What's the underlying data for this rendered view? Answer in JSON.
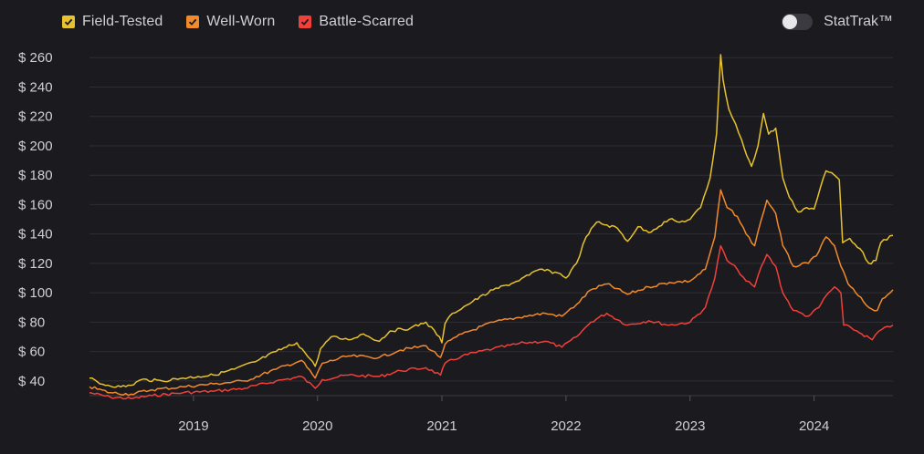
{
  "legend": {
    "items": [
      {
        "label": "Field-Tested",
        "color": "#e6c22e",
        "checked": true
      },
      {
        "label": "Well-Worn",
        "color": "#f28a2c",
        "checked": true
      },
      {
        "label": "Battle-Scarred",
        "color": "#f0403a",
        "checked": true
      }
    ]
  },
  "toggle": {
    "label": "StatTrak™",
    "on": false
  },
  "chart_data": {
    "type": "line",
    "ylim": [
      30,
      262
    ],
    "y_ticks": [
      40,
      60,
      80,
      100,
      120,
      140,
      160,
      180,
      200,
      220,
      240,
      260
    ],
    "y_tick_labels": [
      "$ 40",
      "$ 60",
      "$ 80",
      "$ 100",
      "$ 120",
      "$ 140",
      "$ 160",
      "$ 180",
      "$ 200",
      "$ 220",
      "$ 240",
      "$ 260"
    ],
    "x_range": [
      "2018-03-01",
      "2024-08-20"
    ],
    "x_ticks": [
      "2019-01-01",
      "2020-01-01",
      "2021-01-01",
      "2022-01-01",
      "2023-01-01",
      "2024-01-01"
    ],
    "x_tick_labels": [
      "2019",
      "2020",
      "2021",
      "2022",
      "2023",
      "2024"
    ],
    "grid": true,
    "series": [
      {
        "name": "Field-Tested",
        "color": "#e6c22e",
        "points": [
          [
            "2018-03-01",
            42
          ],
          [
            "2018-04-01",
            38
          ],
          [
            "2018-06-01",
            36
          ],
          [
            "2018-07-01",
            37
          ],
          [
            "2018-08-01",
            41
          ],
          [
            "2018-10-01",
            40
          ],
          [
            "2018-12-01",
            42
          ],
          [
            "2019-01-15",
            43
          ],
          [
            "2019-03-01",
            44
          ],
          [
            "2019-05-01",
            48
          ],
          [
            "2019-07-01",
            53
          ],
          [
            "2019-09-01",
            60
          ],
          [
            "2019-11-01",
            66
          ],
          [
            "2019-12-10",
            55
          ],
          [
            "2019-12-25",
            50
          ],
          [
            "2020-01-10",
            62
          ],
          [
            "2020-02-10",
            70
          ],
          [
            "2020-04-01",
            68
          ],
          [
            "2020-05-15",
            72
          ],
          [
            "2020-07-01",
            67
          ],
          [
            "2020-08-01",
            74
          ],
          [
            "2020-10-01",
            76
          ],
          [
            "2020-11-15",
            80
          ],
          [
            "2020-12-25",
            70
          ],
          [
            "2021-01-01",
            66
          ],
          [
            "2021-01-10",
            79
          ],
          [
            "2021-02-01",
            86
          ],
          [
            "2021-04-01",
            94
          ],
          [
            "2021-06-01",
            102
          ],
          [
            "2021-08-01",
            107
          ],
          [
            "2021-09-15",
            112
          ],
          [
            "2021-10-15",
            116
          ],
          [
            "2021-12-15",
            113
          ],
          [
            "2022-01-01",
            110
          ],
          [
            "2022-02-01",
            120
          ],
          [
            "2022-03-01",
            138
          ],
          [
            "2022-04-01",
            148
          ],
          [
            "2022-06-01",
            144
          ],
          [
            "2022-07-01",
            135
          ],
          [
            "2022-08-01",
            145
          ],
          [
            "2022-09-01",
            141
          ],
          [
            "2022-11-01",
            150
          ],
          [
            "2022-12-01",
            148
          ],
          [
            "2023-01-01",
            150
          ],
          [
            "2023-02-01",
            158
          ],
          [
            "2023-03-01",
            178
          ],
          [
            "2023-03-20",
            208
          ],
          [
            "2023-04-01",
            262
          ],
          [
            "2023-04-08",
            245
          ],
          [
            "2023-04-25",
            225
          ],
          [
            "2023-05-15",
            215
          ],
          [
            "2023-06-10",
            198
          ],
          [
            "2023-07-01",
            186
          ],
          [
            "2023-07-20",
            200
          ],
          [
            "2023-08-05",
            222
          ],
          [
            "2023-08-20",
            208
          ],
          [
            "2023-09-10",
            212
          ],
          [
            "2023-10-01",
            178
          ],
          [
            "2023-10-20",
            165
          ],
          [
            "2023-11-15",
            155
          ],
          [
            "2023-12-10",
            158
          ],
          [
            "2024-01-01",
            157
          ],
          [
            "2024-01-20",
            172
          ],
          [
            "2024-02-05",
            183
          ],
          [
            "2024-03-01",
            180
          ],
          [
            "2024-03-15",
            177
          ],
          [
            "2024-03-25",
            134
          ],
          [
            "2024-04-15",
            137
          ],
          [
            "2024-05-15",
            130
          ],
          [
            "2024-06-10",
            120
          ],
          [
            "2024-07-01",
            122
          ],
          [
            "2024-07-15",
            134
          ],
          [
            "2024-08-20",
            139
          ]
        ]
      },
      {
        "name": "Well-Worn",
        "color": "#f28a2c",
        "points": [
          [
            "2018-03-01",
            36
          ],
          [
            "2018-05-01",
            32
          ],
          [
            "2018-07-01",
            31
          ],
          [
            "2018-09-01",
            34
          ],
          [
            "2018-12-01",
            36
          ],
          [
            "2019-03-01",
            38
          ],
          [
            "2019-06-01",
            40
          ],
          [
            "2019-09-01",
            48
          ],
          [
            "2019-11-15",
            54
          ],
          [
            "2019-12-25",
            42
          ],
          [
            "2020-01-15",
            52
          ],
          [
            "2020-04-01",
            57
          ],
          [
            "2020-07-01",
            56
          ],
          [
            "2020-09-01",
            61
          ],
          [
            "2020-11-15",
            64
          ],
          [
            "2020-12-28",
            56
          ],
          [
            "2021-01-10",
            65
          ],
          [
            "2021-03-01",
            72
          ],
          [
            "2021-06-01",
            80
          ],
          [
            "2021-09-01",
            84
          ],
          [
            "2021-11-01",
            86
          ],
          [
            "2021-12-20",
            84
          ],
          [
            "2022-02-01",
            92
          ],
          [
            "2022-03-15",
            102
          ],
          [
            "2022-05-01",
            106
          ],
          [
            "2022-07-01",
            99
          ],
          [
            "2022-09-01",
            104
          ],
          [
            "2022-11-01",
            107
          ],
          [
            "2023-01-01",
            108
          ],
          [
            "2023-02-15",
            116
          ],
          [
            "2023-03-15",
            138
          ],
          [
            "2023-04-01",
            170
          ],
          [
            "2023-04-20",
            158
          ],
          [
            "2023-05-20",
            152
          ],
          [
            "2023-06-15",
            140
          ],
          [
            "2023-07-10",
            132
          ],
          [
            "2023-07-30",
            150
          ],
          [
            "2023-08-15",
            163
          ],
          [
            "2023-09-10",
            154
          ],
          [
            "2023-10-01",
            132
          ],
          [
            "2023-11-01",
            118
          ],
          [
            "2023-12-15",
            120
          ],
          [
            "2024-01-15",
            128
          ],
          [
            "2024-02-05",
            138
          ],
          [
            "2024-03-01",
            132
          ],
          [
            "2024-03-20",
            118
          ],
          [
            "2024-04-10",
            106
          ],
          [
            "2024-05-10",
            98
          ],
          [
            "2024-06-10",
            90
          ],
          [
            "2024-07-05",
            88
          ],
          [
            "2024-07-20",
            96
          ],
          [
            "2024-08-20",
            102
          ]
        ]
      },
      {
        "name": "Battle-Scarred",
        "color": "#f0403a",
        "points": [
          [
            "2018-03-01",
            32
          ],
          [
            "2018-05-01",
            29
          ],
          [
            "2018-07-01",
            28
          ],
          [
            "2018-09-01",
            30
          ],
          [
            "2018-12-01",
            32
          ],
          [
            "2019-03-01",
            33
          ],
          [
            "2019-06-01",
            35
          ],
          [
            "2019-09-01",
            40
          ],
          [
            "2019-11-15",
            43
          ],
          [
            "2019-12-25",
            35
          ],
          [
            "2020-01-15",
            41
          ],
          [
            "2020-04-01",
            44
          ],
          [
            "2020-07-01",
            43
          ],
          [
            "2020-09-01",
            47
          ],
          [
            "2020-11-15",
            49
          ],
          [
            "2020-12-28",
            44
          ],
          [
            "2021-01-10",
            52
          ],
          [
            "2021-03-01",
            57
          ],
          [
            "2021-06-01",
            62
          ],
          [
            "2021-09-01",
            66
          ],
          [
            "2021-11-01",
            67
          ],
          [
            "2021-12-20",
            63
          ],
          [
            "2022-02-01",
            70
          ],
          [
            "2022-03-15",
            80
          ],
          [
            "2022-05-01",
            86
          ],
          [
            "2022-07-01",
            78
          ],
          [
            "2022-09-01",
            81
          ],
          [
            "2022-11-01",
            78
          ],
          [
            "2023-01-01",
            80
          ],
          [
            "2023-02-15",
            90
          ],
          [
            "2023-03-15",
            110
          ],
          [
            "2023-04-01",
            132
          ],
          [
            "2023-04-20",
            122
          ],
          [
            "2023-05-20",
            116
          ],
          [
            "2023-06-15",
            108
          ],
          [
            "2023-07-10",
            104
          ],
          [
            "2023-07-30",
            118
          ],
          [
            "2023-08-15",
            126
          ],
          [
            "2023-09-10",
            118
          ],
          [
            "2023-10-01",
            100
          ],
          [
            "2023-11-01",
            88
          ],
          [
            "2023-12-15",
            84
          ],
          [
            "2024-01-15",
            90
          ],
          [
            "2024-02-05",
            98
          ],
          [
            "2024-03-01",
            104
          ],
          [
            "2024-03-20",
            100
          ],
          [
            "2024-03-28",
            78
          ],
          [
            "2024-04-20",
            76
          ],
          [
            "2024-05-20",
            72
          ],
          [
            "2024-06-20",
            68
          ],
          [
            "2024-07-10",
            74
          ],
          [
            "2024-08-20",
            78
          ]
        ]
      }
    ]
  }
}
